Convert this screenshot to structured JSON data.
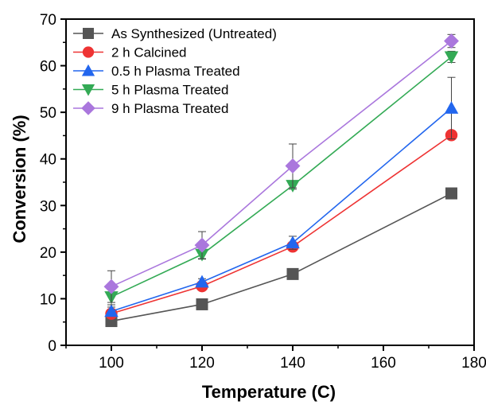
{
  "chart_data": {
    "type": "line",
    "title": "",
    "xlabel": "Temperature (C)",
    "ylabel": "Conversion (%)",
    "xlim": [
      90,
      180
    ],
    "ylim": [
      0,
      70
    ],
    "x_ticks": [
      100,
      120,
      140,
      160,
      180
    ],
    "y_ticks": [
      0,
      10,
      20,
      30,
      40,
      50,
      60,
      70
    ],
    "grid": false,
    "legend_position": "top-left",
    "x": [
      100,
      120,
      140,
      175
    ],
    "series": [
      {
        "name": "As Synthesized (Untreated)",
        "color": "#555555",
        "marker": "square",
        "values": [
          5.2,
          8.8,
          15.3,
          32.6
        ],
        "errors": [
          0.6,
          0.6,
          0.6,
          0.5
        ]
      },
      {
        "name": "2 h Calcined",
        "color": "#ee3333",
        "marker": "circle",
        "values": [
          6.8,
          12.7,
          21.2,
          45.1
        ],
        "errors": [
          0.8,
          0.6,
          0.6,
          0.6
        ]
      },
      {
        "name": "0.5 h Plasma Treated",
        "color": "#2266ee",
        "marker": "triangle-up",
        "values": [
          7.3,
          13.6,
          22.0,
          50.9
        ],
        "errors": [
          0.9,
          0.7,
          1.4,
          6.6
        ]
      },
      {
        "name": "5 h Plasma Treated",
        "color": "#33aa55",
        "marker": "triangle-down",
        "values": [
          10.4,
          19.5,
          34.3,
          61.9
        ],
        "errors": [
          1.7,
          1.0,
          0.8,
          1.2
        ]
      },
      {
        "name": "9 h Plasma Treated",
        "color": "#aa77dd",
        "marker": "diamond",
        "values": [
          12.6,
          21.5,
          38.5,
          65.3
        ],
        "errors": [
          3.4,
          2.9,
          4.7,
          1.4
        ]
      }
    ]
  }
}
